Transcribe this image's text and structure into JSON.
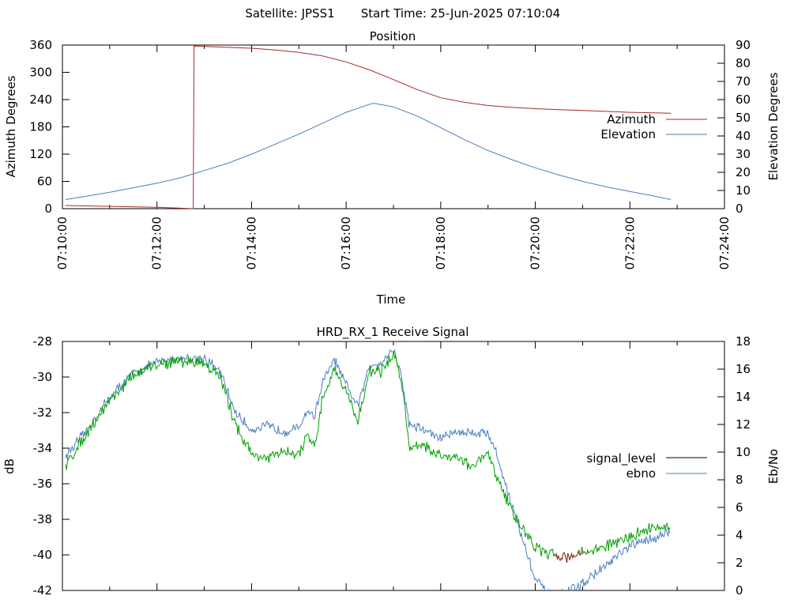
{
  "header": {
    "satellite_text": "Satellite: JPSS1",
    "start_time_text": "Start Time: 25-Jun-2025 07:10:04"
  },
  "chart_data": [
    {
      "type": "line",
      "title": "Position",
      "xlabel": "Time",
      "ylabel": "Azimuth Degrees",
      "y2label": "Elevation Degrees",
      "xlim": [
        "07:10:00",
        "07:24:00"
      ],
      "ylim": [
        0,
        360
      ],
      "y2lim": [
        0,
        90
      ],
      "x_ticks": [
        "07:10:00",
        "07:12:00",
        "07:14:00",
        "07:16:00",
        "07:18:00",
        "07:20:00",
        "07:22:00",
        "07:24:00"
      ],
      "y_ticks": [
        "0",
        "60",
        "120",
        "180",
        "240",
        "300",
        "360"
      ],
      "y2_ticks": [
        "0",
        "10",
        "20",
        "30",
        "40",
        "50",
        "60",
        "70",
        "80",
        "90"
      ],
      "grid": false,
      "legend_position": "right",
      "series": [
        {
          "name": "Azimuth",
          "axis": "y",
          "color": "#a52a2a",
          "x": [
            "07:10:04",
            "07:11:00",
            "07:12:00",
            "07:12:30",
            "07:12:46",
            "07:12:47",
            "07:13:00",
            "07:13:30",
            "07:14:00",
            "07:14:30",
            "07:15:00",
            "07:15:30",
            "07:16:00",
            "07:16:30",
            "07:17:00",
            "07:17:30",
            "07:18:00",
            "07:18:30",
            "07:19:00",
            "07:19:30",
            "07:20:00",
            "07:20:30",
            "07:21:00",
            "07:21:30",
            "07:22:00",
            "07:22:30",
            "07:22:52"
          ],
          "values": [
            7,
            5,
            3,
            1,
            0,
            358,
            357,
            355,
            353,
            349,
            344,
            336,
            323,
            305,
            284,
            262,
            244,
            234,
            227,
            223,
            220,
            218,
            216,
            214,
            212,
            211,
            210
          ]
        },
        {
          "name": "Elevation",
          "axis": "y2",
          "color": "#4a7fbf",
          "x": [
            "07:10:04",
            "07:11:00",
            "07:12:00",
            "07:12:30",
            "07:13:00",
            "07:13:30",
            "07:14:00",
            "07:14:30",
            "07:15:00",
            "07:15:30",
            "07:16:00",
            "07:16:30",
            "07:16:35",
            "07:17:00",
            "07:17:30",
            "07:18:00",
            "07:18:30",
            "07:19:00",
            "07:19:30",
            "07:20:00",
            "07:20:30",
            "07:21:00",
            "07:21:30",
            "07:22:00",
            "07:22:30",
            "07:22:52"
          ],
          "values": [
            5,
            9,
            14,
            17,
            21,
            25,
            30,
            35.5,
            41,
            47,
            53,
            57.5,
            58,
            56,
            51,
            44.5,
            38,
            32,
            27,
            22.5,
            18.5,
            15,
            12,
            9.5,
            7,
            5
          ]
        }
      ]
    },
    {
      "type": "line",
      "title": "HRD_RX_1 Receive Signal",
      "ylabel": "dB",
      "y2label": "Eb/No",
      "xlim": [
        "07:10:00",
        "07:24:00"
      ],
      "ylim": [
        -42,
        -28
      ],
      "y2lim": [
        0,
        18
      ],
      "y_ticks": [
        "-42",
        "-40",
        "-38",
        "-36",
        "-34",
        "-32",
        "-30",
        "-28"
      ],
      "y2_ticks": [
        "0",
        "2",
        "4",
        "6",
        "8",
        "10",
        "12",
        "14",
        "16",
        "18"
      ],
      "grid": false,
      "legend_position": "right",
      "series": [
        {
          "name": "signal_level",
          "axis": "y",
          "legend_color": "#000000",
          "color": "#00a000",
          "low_color": "#a52a2a",
          "x": [
            "07:10:04",
            "07:10:30",
            "07:11:00",
            "07:11:30",
            "07:12:00",
            "07:12:30",
            "07:13:00",
            "07:13:20",
            "07:13:40",
            "07:14:00",
            "07:14:20",
            "07:14:40",
            "07:15:00",
            "07:15:10",
            "07:15:20",
            "07:15:30",
            "07:15:45",
            "07:16:00",
            "07:16:15",
            "07:16:30",
            "07:16:45",
            "07:17:00",
            "07:17:10",
            "07:17:20",
            "07:17:35",
            "07:18:00",
            "07:18:20",
            "07:18:40",
            "07:19:00",
            "07:19:10",
            "07:19:30",
            "07:20:00",
            "07:20:20",
            "07:20:40",
            "07:21:00",
            "07:21:30",
            "07:22:00",
            "07:22:30",
            "07:22:52"
          ],
          "values": [
            -35.0,
            -33.2,
            -31.3,
            -29.9,
            -29.3,
            -29.1,
            -29.2,
            -30.0,
            -32.7,
            -34.3,
            -34.6,
            -34.2,
            -34.4,
            -33.3,
            -34.1,
            -31.2,
            -29.5,
            -30.8,
            -32.5,
            -29.6,
            -29.7,
            -28.7,
            -30.0,
            -34.0,
            -33.7,
            -34.5,
            -34.4,
            -35.1,
            -34.3,
            -35.5,
            -37.5,
            -39.6,
            -40.0,
            -40.1,
            -39.9,
            -39.5,
            -39.0,
            -38.4,
            -38.5
          ]
        },
        {
          "name": "ebno",
          "axis": "y2",
          "color": "#4a7fbf",
          "x": [
            "07:10:04",
            "07:10:30",
            "07:11:00",
            "07:11:30",
            "07:12:00",
            "07:12:30",
            "07:13:00",
            "07:13:20",
            "07:13:40",
            "07:14:00",
            "07:14:20",
            "07:14:40",
            "07:15:00",
            "07:15:10",
            "07:15:20",
            "07:15:30",
            "07:15:45",
            "07:16:00",
            "07:16:15",
            "07:16:30",
            "07:16:45",
            "07:17:00",
            "07:17:10",
            "07:17:20",
            "07:17:35",
            "07:18:00",
            "07:18:20",
            "07:18:40",
            "07:19:00",
            "07:19:10",
            "07:19:30",
            "07:20:00",
            "07:20:20",
            "07:20:40",
            "07:21:00",
            "07:21:30",
            "07:22:00",
            "07:22:30",
            "07:22:52"
          ],
          "values": [
            9.7,
            11.5,
            14.0,
            15.7,
            16.5,
            16.8,
            16.8,
            15.8,
            12.8,
            11.6,
            11.9,
            11.5,
            11.7,
            13.0,
            12.6,
            15.0,
            16.7,
            14.8,
            13.3,
            16.3,
            16.5,
            17.5,
            15.5,
            12.0,
            11.7,
            11.0,
            11.5,
            11.4,
            11.4,
            10.0,
            6.2,
            0.8,
            -0.5,
            -0.2,
            0.5,
            1.8,
            3.2,
            3.8,
            4.2
          ]
        }
      ]
    }
  ]
}
